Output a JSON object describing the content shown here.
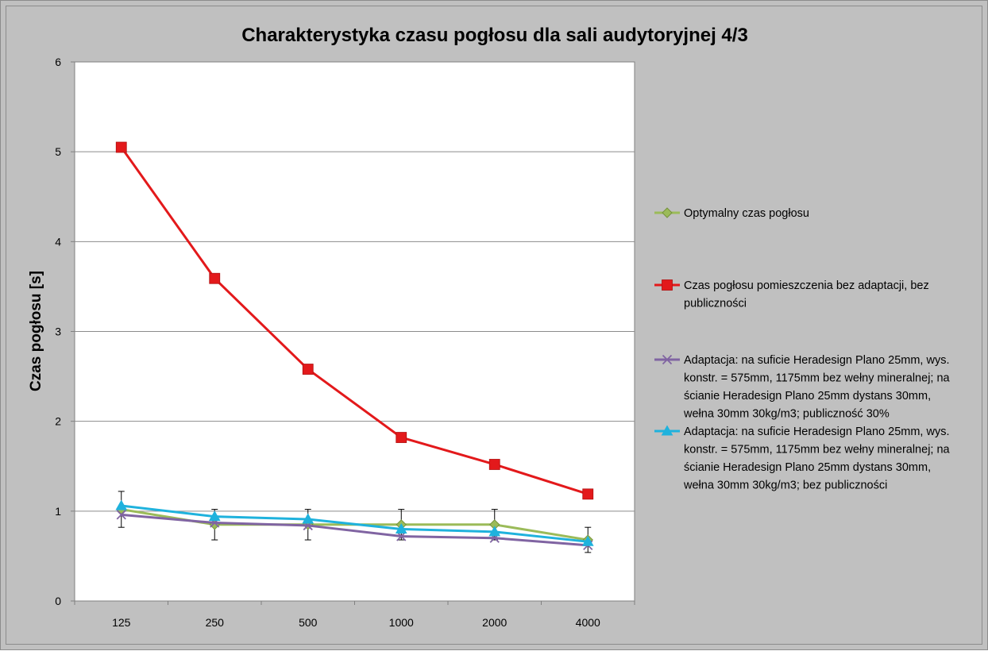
{
  "chart_data": {
    "type": "line",
    "title": "Charakterystyka czasu pogłosu dla sali audytoryjnej 4/3",
    "xlabel": "",
    "ylabel": "Czas pogłosu [s]",
    "categories": [
      "125",
      "250",
      "500",
      "1000",
      "2000",
      "4000"
    ],
    "ylim": [
      0,
      6
    ],
    "yticks": [
      "0",
      "1",
      "2",
      "3",
      "4",
      "5",
      "6"
    ],
    "grid": "horizontal",
    "legend_position": "right",
    "series": [
      {
        "name": "Optymalny czas pogłosu",
        "values": [
          1.02,
          0.85,
          0.85,
          0.85,
          0.85,
          0.68
        ],
        "color": "#9bbb59",
        "marker": "diamond",
        "error": [
          0.2,
          0.17,
          0.17,
          0.17,
          0.17,
          0.14
        ]
      },
      {
        "name": "Czas pogłosu pomieszczenia bez adaptacji, bez publiczności",
        "legend_lines": [
          "Czas pogłosu pomieszczenia bez adaptacji, bez",
          "publiczności"
        ],
        "values": [
          5.05,
          3.59,
          2.58,
          1.82,
          1.52,
          1.19
        ],
        "color": "#e3191b",
        "marker": "square"
      },
      {
        "name": "Adaptacja: na suficie Heradesign Plano 25mm, wys. konstr. = 575mm, 1175mm bez wełny mineralnej; na ścianie Heradesign Plano 25mm dystans 30mm, wełna 30mm 30kg/m3; publiczność 30%",
        "legend_lines": [
          "Adaptacja: na suficie Heradesign Plano 25mm, wys.",
          "konstr. = 575mm, 1175mm bez wełny mineralnej; na",
          "ścianie Heradesign Plano 25mm dystans 30mm,",
          "wełna 30mm 30kg/m3; publiczność 30%"
        ],
        "values": [
          0.96,
          0.87,
          0.84,
          0.72,
          0.7,
          0.62
        ],
        "color": "#8064a2",
        "marker": "x"
      },
      {
        "name": "Adaptacja: na suficie Heradesign Plano 25mm, wys. konstr. = 575mm, 1175mm bez wełny mineralnej; na ścianie Heradesign Plano 25mm dystans 30mm, wełna 30mm 30kg/m3; bez publiczności",
        "legend_lines": [
          "Adaptacja: na suficie Heradesign Plano 25mm, wys.",
          "konstr. = 575mm, 1175mm bez wełny mineralnej; na",
          "ścianie Heradesign Plano 25mm dystans 30mm,",
          "wełna 30mm 30kg/m3; bez publiczności"
        ],
        "values": [
          1.06,
          0.94,
          0.91,
          0.8,
          0.77,
          0.66
        ],
        "color": "#1fb2dd",
        "marker": "triangle"
      }
    ]
  }
}
